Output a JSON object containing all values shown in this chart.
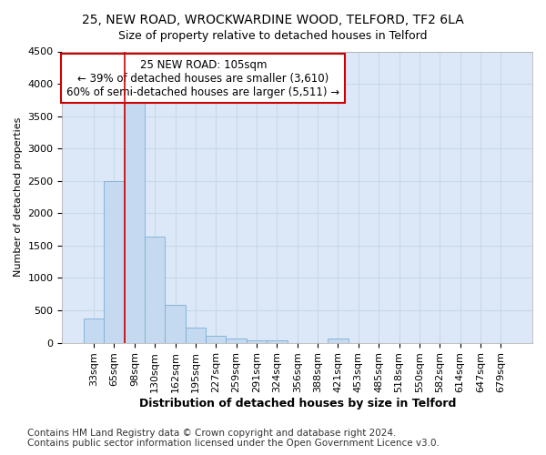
{
  "title": "25, NEW ROAD, WROCKWARDINE WOOD, TELFORD, TF2 6LA",
  "subtitle": "Size of property relative to detached houses in Telford",
  "xlabel": "Distribution of detached houses by size in Telford",
  "ylabel": "Number of detached properties",
  "categories": [
    "33sqm",
    "65sqm",
    "98sqm",
    "130sqm",
    "162sqm",
    "195sqm",
    "227sqm",
    "259sqm",
    "291sqm",
    "324sqm",
    "356sqm",
    "388sqm",
    "421sqm",
    "453sqm",
    "485sqm",
    "518sqm",
    "550sqm",
    "582sqm",
    "614sqm",
    "647sqm",
    "679sqm"
  ],
  "values": [
    370,
    2500,
    3750,
    1640,
    590,
    230,
    105,
    60,
    40,
    40,
    0,
    0,
    60,
    0,
    0,
    0,
    0,
    0,
    0,
    0,
    0
  ],
  "bar_color": "#c5d9f0",
  "bar_edge_color": "#7bafd4",
  "vline_x_index": 2,
  "vline_color": "#cc0000",
  "annotation_text": "25 NEW ROAD: 105sqm\n← 39% of detached houses are smaller (3,610)\n60% of semi-detached houses are larger (5,511) →",
  "annotation_box_color": "#ffffff",
  "annotation_box_edge_color": "#cc0000",
  "ylim": [
    0,
    4500
  ],
  "yticks": [
    0,
    500,
    1000,
    1500,
    2000,
    2500,
    3000,
    3500,
    4000,
    4500
  ],
  "grid_color": "#c8d8e8",
  "background_color": "#dce8f8",
  "footer": "Contains HM Land Registry data © Crown copyright and database right 2024.\nContains public sector information licensed under the Open Government Licence v3.0.",
  "title_fontsize": 10,
  "subtitle_fontsize": 9,
  "xlabel_fontsize": 9,
  "ylabel_fontsize": 8,
  "tick_fontsize": 8,
  "annotation_fontsize": 8.5,
  "footer_fontsize": 7.5
}
